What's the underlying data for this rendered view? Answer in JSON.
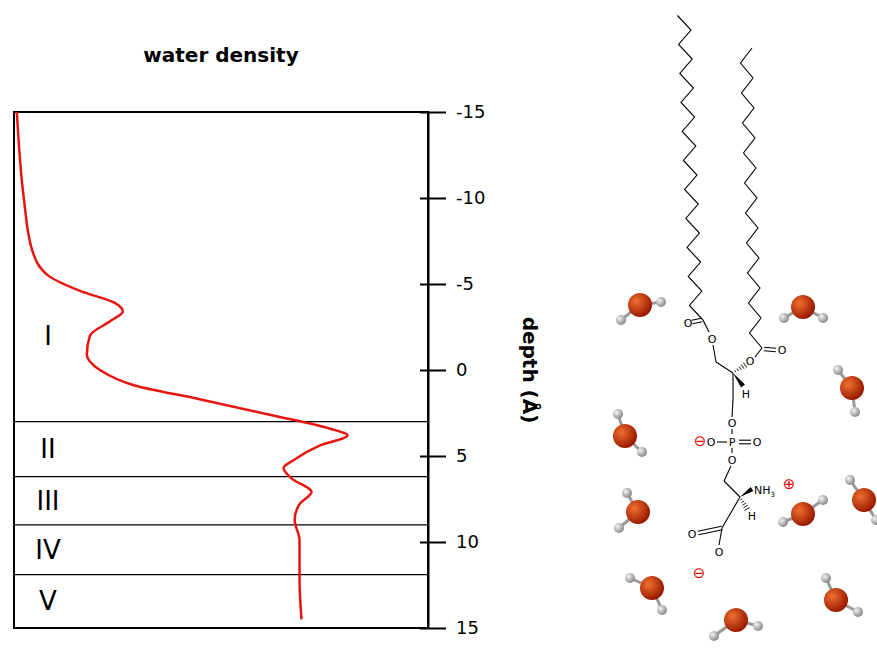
{
  "chart_data": {
    "type": "line",
    "title": "water density",
    "y_label": "depth (Å)",
    "xlim": [
      0,
      1.45
    ],
    "ylim": [
      -15,
      15
    ],
    "yticks": [
      -15,
      -10,
      -5,
      0,
      5,
      10,
      15
    ],
    "tick_labels": "y",
    "series": [
      {
        "color": "#e8150f",
        "x": [
          0.01,
          0.035,
          0.063,
          0.119,
          0.231,
          0.353,
          0.381,
          0.343,
          0.266,
          0.255,
          0.301,
          0.423,
          0.65,
          0.895,
          1.105,
          1.168,
          1.07,
          0.983,
          0.944,
          0.972,
          1.042,
          1.0,
          0.983,
          1.0,
          1.0,
          1.007
        ],
        "y": [
          -15,
          -9.9,
          -7,
          -5.5,
          -4.6,
          -3.9,
          -3.4,
          -2.9,
          -2,
          -0.9,
          0,
          0.9,
          1.7,
          2.6,
          3.4,
          3.8,
          4.4,
          5.2,
          5.7,
          6.3,
          7.1,
          7.8,
          8.7,
          9.9,
          12.2,
          14.5
        ]
      }
    ],
    "regions": [
      {
        "label": "I",
        "from": -15,
        "to": 3.0
      },
      {
        "label": "II",
        "from": 3.0,
        "to": 6.2
      },
      {
        "label": "III",
        "from": 6.2,
        "to": 9.0
      },
      {
        "label": "IV",
        "from": 9.0,
        "to": 11.9
      },
      {
        "label": "V",
        "from": 11.9,
        "to": 15
      }
    ]
  },
  "diagram": {
    "atom_labels": [
      "O",
      "O",
      "O",
      "O",
      "H",
      "O",
      "P",
      "O",
      "O",
      "O",
      "NH3",
      "H",
      "O",
      "O"
    ],
    "charges": [
      "⊖",
      "⊕",
      "⊖"
    ]
  }
}
